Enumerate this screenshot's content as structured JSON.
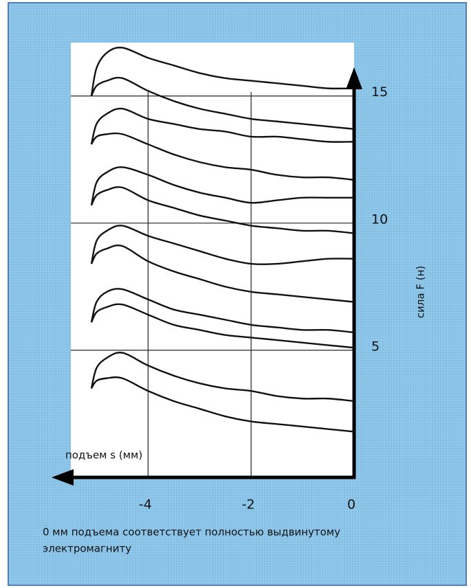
{
  "chart_data": {
    "type": "line",
    "xlabel": "подъем s (мм)",
    "ylabel": "сила F (н)",
    "note": [
      "0 мм подъема соответствует полностью выдвинутому",
      "электромагниту"
    ],
    "x": [
      -5.1,
      -5.0,
      -4.8,
      -4.5,
      -4.0,
      -3.5,
      -3.0,
      -2.5,
      -2.0,
      -1.5,
      -1.0,
      -0.5,
      0
    ],
    "series": [
      {
        "color": "#111111",
        "values": [
          15.0,
          16.1,
          16.7,
          16.9,
          16.5,
          16.2,
          15.9,
          15.7,
          15.6,
          15.5,
          15.4,
          15.3,
          15.3
        ]
      },
      {
        "color": "#111111",
        "values": [
          15.0,
          15.4,
          15.6,
          15.7,
          15.2,
          14.8,
          14.5,
          14.3,
          14.1,
          14.0,
          13.9,
          13.8,
          13.7
        ]
      },
      {
        "color": "#111111",
        "values": [
          13.1,
          13.9,
          14.3,
          14.5,
          14.1,
          13.9,
          13.7,
          13.6,
          13.4,
          13.4,
          13.3,
          13.2,
          13.2
        ]
      },
      {
        "color": "#111111",
        "values": [
          13.1,
          13.4,
          13.5,
          13.5,
          13.1,
          12.7,
          12.4,
          12.2,
          12.1,
          11.9,
          11.8,
          11.8,
          11.7
        ]
      },
      {
        "color": "#111111",
        "values": [
          10.7,
          11.6,
          12.0,
          12.2,
          11.9,
          11.5,
          11.2,
          11.0,
          10.8,
          10.9,
          11.0,
          11.0,
          11.0
        ]
      },
      {
        "color": "#111111",
        "values": [
          10.7,
          11.1,
          11.3,
          11.4,
          10.9,
          10.6,
          10.3,
          10.1,
          9.9,
          9.8,
          9.7,
          9.7,
          9.6
        ]
      },
      {
        "color": "#111111",
        "values": [
          8.4,
          9.3,
          9.7,
          9.9,
          9.5,
          9.2,
          8.9,
          8.6,
          8.4,
          8.4,
          8.5,
          8.6,
          8.6
        ]
      },
      {
        "color": "#111111",
        "values": [
          8.4,
          8.8,
          9.0,
          9.1,
          8.5,
          8.1,
          7.8,
          7.5,
          7.3,
          7.2,
          7.1,
          7.0,
          6.9
        ]
      },
      {
        "color": "#111111",
        "values": [
          6.1,
          6.9,
          7.3,
          7.4,
          7.0,
          6.6,
          6.4,
          6.2,
          6.0,
          5.9,
          5.8,
          5.8,
          5.7
        ]
      },
      {
        "color": "#111111",
        "values": [
          6.1,
          6.5,
          6.7,
          6.8,
          6.4,
          6.0,
          5.8,
          5.6,
          5.5,
          5.4,
          5.3,
          5.2,
          5.1
        ]
      },
      {
        "color": "#111111",
        "values": [
          3.5,
          4.3,
          4.7,
          4.9,
          4.4,
          4.0,
          3.7,
          3.5,
          3.4,
          3.2,
          3.1,
          3.1,
          3.0
        ]
      },
      {
        "color": "#111111",
        "values": [
          3.5,
          3.8,
          3.9,
          3.9,
          3.4,
          3.0,
          2.7,
          2.4,
          2.2,
          2.1,
          2.0,
          1.9,
          1.8
        ]
      }
    ],
    "xlim": [
      -5.5,
      0
    ],
    "ylim": [
      0,
      17.1
    ],
    "xticks": [
      -4,
      -2,
      0
    ],
    "yticks": [
      5,
      10,
      15
    ],
    "grid": true
  }
}
